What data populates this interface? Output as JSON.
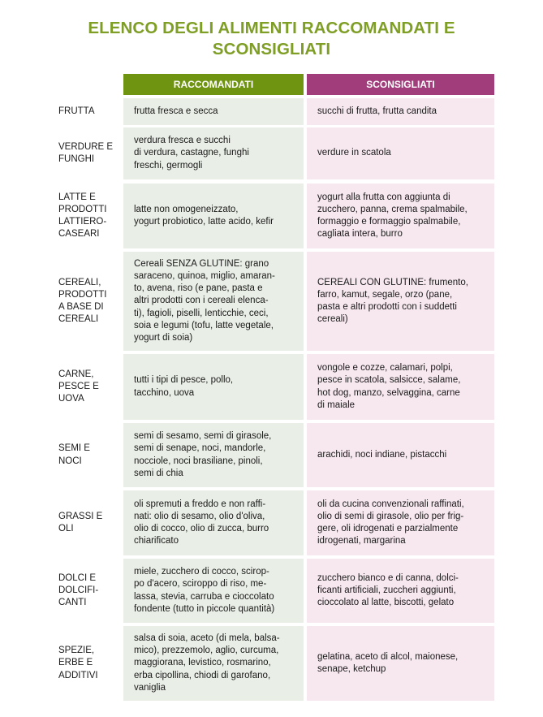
{
  "title": {
    "line1": "ELENCO DEGLI ALIMENTI RACCOMANDATI E",
    "line2": "SCONSIGLIATI"
  },
  "headers": {
    "recommended": "RACCOMANDATI",
    "not_recommended": "SCONSIGLIATI"
  },
  "colors": {
    "title": "#7e9e25",
    "recommended_header": "#6f9412",
    "not_recommended_header": "#a23d7c",
    "recommended_cell": "#e9eee6",
    "not_recommended_cell": "#f7e8ef"
  },
  "rows": [
    {
      "category": "FRUTTA",
      "recommended": "frutta fresca e secca",
      "not_recommended": "succhi di frutta, frutta candita"
    },
    {
      "category": "VERDURE E\nFUNGHI",
      "recommended": "verdura fresca e succhi\ndi verdura, castagne, funghi\nfreschi, germogli",
      "not_recommended": "verdure in scatola"
    },
    {
      "category": "LATTE E\nPRODOTTI\nLATTIERO-\nCASEARI",
      "recommended": "latte non omogeneizzato,\nyogurt probiotico, latte acido, kefir",
      "not_recommended": "yogurt alla frutta con aggiunta di\nzucchero, panna, crema spalmabile,\nformaggio e formaggio spalmabile,\ncagliata intera, burro"
    },
    {
      "category": "CEREALI,\nPRODOTTI\nA BASE DI\nCEREALI",
      "recommended": "Cereali SENZA GLUTINE: grano\nsaraceno, quinoa, miglio, amaran-\nto, avena, riso (e pane, pasta e\naltri prodotti con i cereali elenca-\nti), fagioli, piselli, lenticchie, ceci,\nsoia e legumi (tofu, latte vegetale,\nyogurt di soia)",
      "not_recommended": "CEREALI CON GLUTINE: frumento,\nfarro, kamut, segale, orzo (pane,\npasta e altri prodotti con i suddetti\ncereali)"
    },
    {
      "category": "CARNE,\nPESCE E\nUOVA",
      "recommended": "tutti i tipi di pesce, pollo,\ntacchino, uova",
      "not_recommended": "vongole e cozze, calamari, polpi,\npesce in scatola, salsicce, salame,\nhot dog, manzo, selvaggina, carne\ndi maiale"
    },
    {
      "category": "SEMI E\nNOCI",
      "recommended": "semi di sesamo, semi di girasole,\nsemi di senape, noci, mandorle,\nnocciole, noci brasiliane, pinoli,\nsemi di chia",
      "not_recommended": "arachidi, noci indiane, pistacchi"
    },
    {
      "category": "GRASSI E\nOLI",
      "recommended": "oli spremuti a freddo e non raffi-\nnati: olio di sesamo, olio d'oliva,\nolio di cocco, olio di zucca, burro\nchiarificato",
      "not_recommended": "oli da cucina convenzionali raffinati,\nolio di semi di girasole, olio per frig-\ngere, oli idrogenati e parzialmente\nidrogenati, margarina"
    },
    {
      "category": "DOLCI E\nDOLCIFI-\nCANTI",
      "recommended": "miele, zucchero di cocco, scirop-\npo d'acero, sciroppo di riso, me-\nlassa, stevia, carruba e cioccolato\nfondente (tutto in piccole quantità)",
      "not_recommended": "zucchero bianco e di canna, dolci-\nficanti artificiali, zuccheri aggiunti,\ncioccolato al latte, biscotti, gelato"
    },
    {
      "category": "SPEZIE,\nERBE E\nADDITIVI",
      "recommended": "salsa di soia, aceto (di mela, balsa-\nmico), prezzemolo, aglio, curcuma,\nmaggiorana, levistico, rosmarino,\nerba cipollina, chiodi di garofano,\nvaniglia",
      "not_recommended": "gelatina, aceto di alcol, maionese,\nsenape, ketchup"
    }
  ]
}
